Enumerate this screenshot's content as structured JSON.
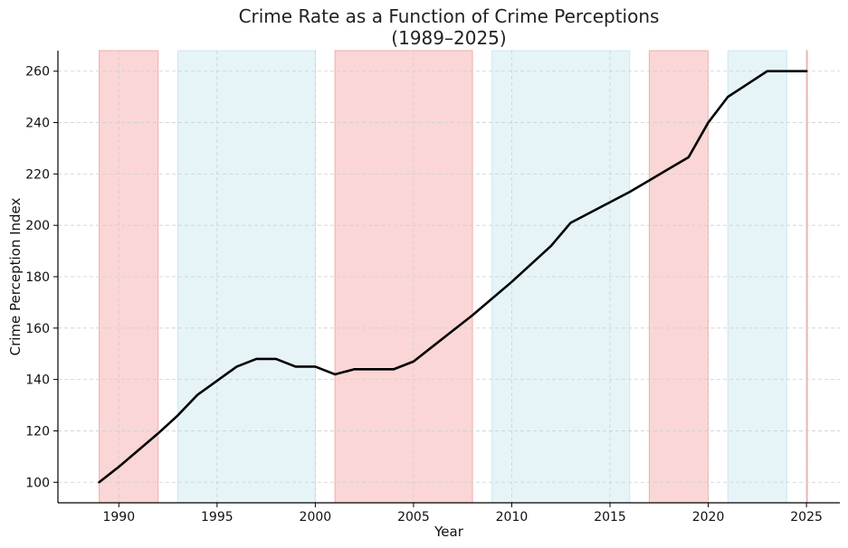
{
  "chart_data": {
    "type": "line",
    "title": "Crime Rate as a Function of Crime Perceptions",
    "subtitle": "(1989–2025)",
    "xlabel": "Year",
    "ylabel": "Crime Perception Index",
    "xlim": [
      1989,
      2025
    ],
    "ylim": [
      92,
      268
    ],
    "x_ticks": [
      1990,
      1995,
      2000,
      2005,
      2010,
      2015,
      2020,
      2025
    ],
    "y_ticks": [
      100,
      120,
      140,
      160,
      180,
      200,
      220,
      240,
      260
    ],
    "grid": true,
    "series": [
      {
        "x": [
          1989,
          1990,
          1991,
          1992,
          1993,
          1994,
          1995,
          1996,
          1997,
          1998,
          1999,
          2000,
          2001,
          2002,
          2003,
          2004,
          2005,
          2006,
          2007,
          2008,
          2009,
          2010,
          2011,
          2012,
          2013,
          2014,
          2015,
          2016,
          2017,
          2018,
          2019,
          2020,
          2021,
          2022,
          2023,
          2024,
          2025
        ],
        "values": [
          100,
          106,
          112.5,
          119,
          126,
          134,
          139.5,
          145,
          148,
          148,
          145,
          145,
          142,
          144,
          144,
          144,
          147,
          153,
          159,
          165,
          171.5,
          178,
          185,
          192,
          201,
          205,
          209,
          213,
          217.5,
          222,
          226.5,
          240,
          250,
          255,
          260,
          260,
          260
        ],
        "color": "#000000"
      }
    ],
    "shaded_regions": [
      {
        "start": 1989,
        "end": 1992,
        "color": "#f4a5a5"
      },
      {
        "start": 1993,
        "end": 2000,
        "color": "#c7e6ef"
      },
      {
        "start": 2001,
        "end": 2008,
        "color": "#f4a5a5"
      },
      {
        "start": 2009,
        "end": 2016,
        "color": "#c7e6ef"
      },
      {
        "start": 2017,
        "end": 2020,
        "color": "#f4a5a5"
      },
      {
        "start": 2021,
        "end": 2024,
        "color": "#c7e6ef"
      },
      {
        "start": 2025,
        "end": 2025,
        "color": "#f4a5a5"
      }
    ]
  }
}
